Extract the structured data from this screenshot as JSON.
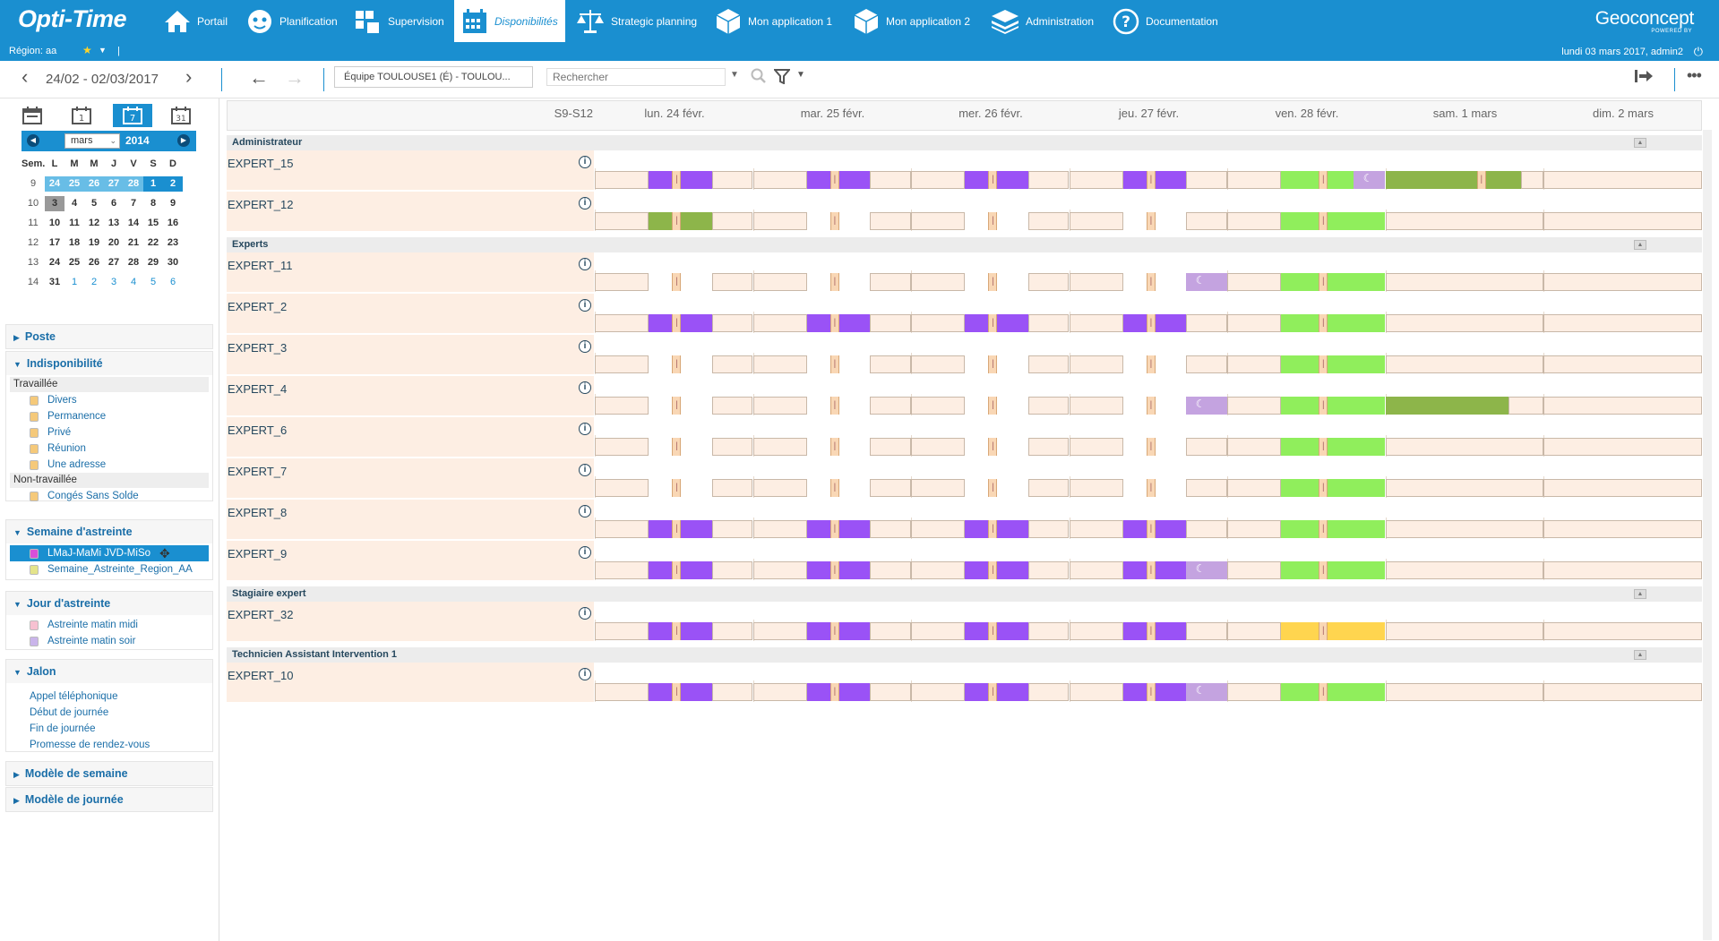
{
  "app": {
    "name": "Opti-Time",
    "brand": "Geoconcept",
    "brand_sub": "POWERED BY",
    "accent": "#1a8fd0"
  },
  "nav": [
    {
      "label": "Portail",
      "icon": "home-icon"
    },
    {
      "label": "Planification",
      "icon": "user-icon"
    },
    {
      "label": "Supervision",
      "icon": "supervision-icon"
    },
    {
      "label": "Disponibilités",
      "icon": "calendar-icon",
      "active": true
    },
    {
      "label": "Strategic planning",
      "icon": "balance-icon"
    },
    {
      "label": "Mon application 1",
      "icon": "cube-icon"
    },
    {
      "label": "Mon application 2",
      "icon": "cube-icon"
    },
    {
      "label": "Administration",
      "icon": "stack-icon"
    },
    {
      "label": "Documentation",
      "icon": "help-icon"
    }
  ],
  "subbar": {
    "region": "Région: aa",
    "separator": "|",
    "user_info": "lundi 03 mars 2017, admin2"
  },
  "toolbar": {
    "date_range": "24/02 - 02/03/2017",
    "team": "Équipe TOULOUSE1 (É) - TOULOU...",
    "search_placeholder": "Rechercher"
  },
  "minical": {
    "month": "mars",
    "year": "2014",
    "headers": [
      "Sem.",
      "L",
      "M",
      "M",
      "J",
      "V",
      "S",
      "D"
    ],
    "weeks": [
      {
        "wk": "9",
        "days": [
          "24",
          "25",
          "26",
          "27",
          "28",
          "1",
          "2"
        ]
      },
      {
        "wk": "10",
        "days": [
          "3",
          "4",
          "5",
          "6",
          "7",
          "8",
          "9"
        ]
      },
      {
        "wk": "11",
        "days": [
          "10",
          "11",
          "12",
          "13",
          "14",
          "15",
          "16"
        ]
      },
      {
        "wk": "12",
        "days": [
          "17",
          "18",
          "19",
          "20",
          "21",
          "22",
          "23"
        ]
      },
      {
        "wk": "13",
        "days": [
          "24",
          "25",
          "26",
          "27",
          "28",
          "29",
          "30"
        ]
      },
      {
        "wk": "14",
        "days": [
          "31",
          "1",
          "2",
          "3",
          "4",
          "5",
          "6"
        ]
      }
    ]
  },
  "sections": {
    "poste": "Poste",
    "indispo": {
      "title": "Indisponibilité",
      "group_worked": "Travaillée",
      "worked_items": [
        "Divers",
        "Permanence",
        "Privé",
        "Réunion",
        "Une adresse"
      ],
      "group_nonworked": "Non-travaillée",
      "nonworked_items": [
        "Congés Sans Solde"
      ]
    },
    "semaine_astreinte": {
      "title": "Semaine d'astreinte",
      "items": [
        "LMaJ-MaMi JVD-MiSo",
        "Semaine_Astreinte_Region_AA"
      ]
    },
    "jour_astreinte": {
      "title": "Jour d'astreinte",
      "items": [
        "Astreinte matin midi",
        "Astreinte matin soir"
      ]
    },
    "jalon": {
      "title": "Jalon",
      "items": [
        "Appel téléphonique",
        "Début de journée",
        "Fin de journée",
        "Promesse de rendez-vous"
      ]
    },
    "modele_semaine": "Modèle de semaine",
    "modele_journee": "Modèle de journée"
  },
  "planning": {
    "week_label": "S9-S12",
    "days": [
      "lun. 24 févr.",
      "mar. 25 févr.",
      "mer. 26 févr.",
      "jeu. 27 févr.",
      "ven. 28 févr.",
      "sam. 1 mars",
      "dim. 2 mars"
    ],
    "groups": [
      {
        "name": "Administrateur",
        "rows": [
          "EXPERT_15",
          "EXPERT_12"
        ]
      },
      {
        "name": "Experts",
        "rows": [
          "EXPERT_11",
          "EXPERT_2",
          "EXPERT_3",
          "EXPERT_4",
          "EXPERT_6",
          "EXPERT_7",
          "EXPERT_8",
          "EXPERT_9"
        ]
      },
      {
        "name": "Stagiaire expert",
        "rows": [
          "EXPERT_32"
        ]
      },
      {
        "name": "Technicien Assistant Intervention 1",
        "rows": [
          "EXPERT_10"
        ]
      }
    ],
    "colors": {
      "work": "#fdeee3",
      "purple": "#9a52f6",
      "green": "#90ee5c",
      "olive": "#8db54a",
      "lavender": "#c4a3e0",
      "yellow": "#ffd54f"
    }
  }
}
